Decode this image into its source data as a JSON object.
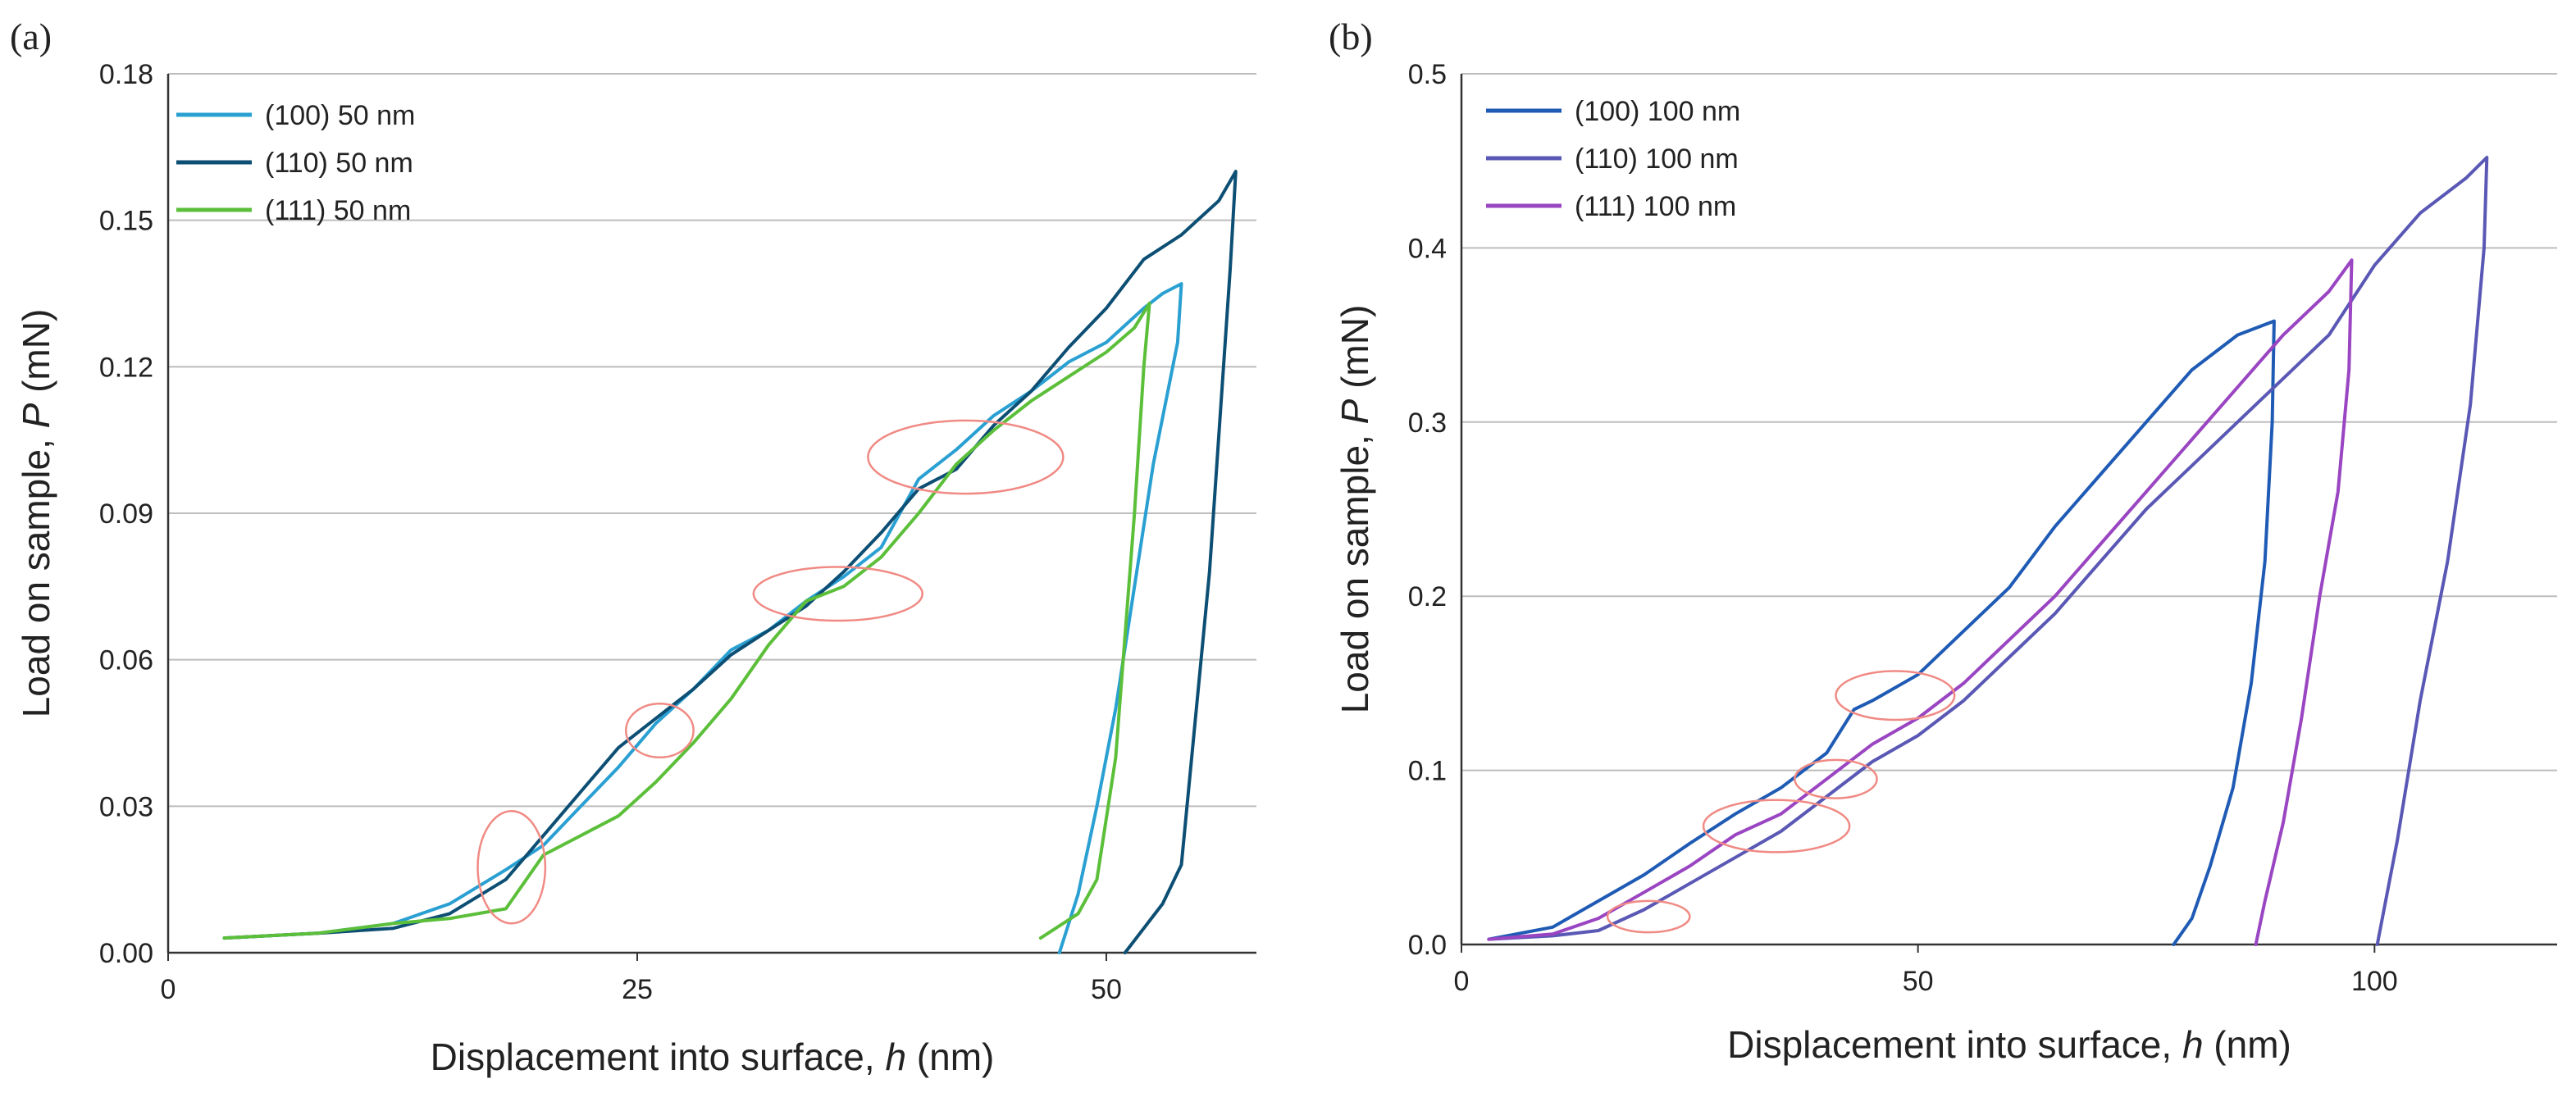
{
  "chart_data": [
    {
      "type": "line",
      "panel_label": "(a)",
      "xlabel_main": "Displacement into surface, ",
      "xlabel_italic": "h",
      "xlabel_unit": " (nm)",
      "ylabel_main": "Load on sample, ",
      "ylabel_italic": "P",
      "ylabel_unit": " (mN)",
      "xlim": [
        0,
        58
      ],
      "ylim": [
        0,
        0.18
      ],
      "xticks": [
        0,
        25,
        50
      ],
      "xtick_labels": [
        "0",
        "25",
        "50"
      ],
      "yticks": [
        0,
        0.03,
        0.06,
        0.09,
        0.12,
        0.15,
        0.18
      ],
      "ytick_labels": [
        "0.00",
        "0.03",
        "0.06",
        "0.09",
        "0.12",
        "0.15",
        "0.18"
      ],
      "grid": "horizontal",
      "legend_position": "top-left",
      "series": [
        {
          "name": "(100) 50 nm",
          "color": "#2aa0d2",
          "x": [
            3,
            8,
            12,
            15,
            18,
            20,
            22,
            24,
            26,
            28,
            30,
            32,
            34,
            36,
            38,
            40,
            42,
            44,
            46,
            48,
            50,
            52,
            53,
            54,
            53.8,
            52.5,
            51.5,
            50.5,
            49.5,
            48.5,
            47.5
          ],
          "y": [
            0.003,
            0.004,
            0.006,
            0.01,
            0.017,
            0.022,
            0.03,
            0.038,
            0.047,
            0.054,
            0.062,
            0.066,
            0.072,
            0.077,
            0.083,
            0.097,
            0.103,
            0.11,
            0.115,
            0.121,
            0.125,
            0.132,
            0.135,
            0.137,
            0.125,
            0.1,
            0.075,
            0.05,
            0.03,
            0.012,
            0.0
          ]
        },
        {
          "name": "(110) 50 nm",
          "color": "#0d4f74",
          "x": [
            3,
            8,
            12,
            15,
            18,
            20,
            22,
            24,
            26,
            28,
            30,
            32,
            34,
            36,
            38,
            40,
            42,
            44,
            46,
            48,
            50,
            52,
            54,
            56,
            56.9,
            56.6,
            55.5,
            54,
            53,
            52,
            51
          ],
          "y": [
            0.003,
            0.004,
            0.005,
            0.008,
            0.015,
            0.024,
            0.033,
            0.042,
            0.048,
            0.054,
            0.061,
            0.066,
            0.071,
            0.078,
            0.086,
            0.095,
            0.099,
            0.108,
            0.115,
            0.124,
            0.132,
            0.142,
            0.147,
            0.154,
            0.16,
            0.14,
            0.078,
            0.018,
            0.01,
            0.005,
            0.0
          ]
        },
        {
          "name": "(111) 50 nm",
          "color": "#5cbf3a",
          "x": [
            3,
            8,
            12,
            15,
            18,
            20,
            22,
            24,
            26,
            28,
            30,
            32,
            34,
            36,
            38,
            40,
            42,
            44,
            46,
            48,
            50,
            51.5,
            52.3,
            52,
            51.5,
            51,
            50.5,
            49.5,
            48.5,
            46.5
          ],
          "y": [
            0.003,
            0.004,
            0.006,
            0.007,
            0.009,
            0.02,
            0.024,
            0.028,
            0.035,
            0.043,
            0.052,
            0.063,
            0.072,
            0.075,
            0.081,
            0.09,
            0.1,
            0.107,
            0.113,
            0.118,
            0.123,
            0.128,
            0.133,
            0.12,
            0.09,
            0.065,
            0.04,
            0.015,
            0.008,
            0.003
          ]
        }
      ],
      "annotations": [
        {
          "cx": 18.3,
          "cy": 0.0175,
          "rx": 1.8,
          "ry": 0.0115
        },
        {
          "cx": 26.2,
          "cy": 0.0455,
          "rx": 1.8,
          "ry": 0.0055
        },
        {
          "cx": 35.7,
          "cy": 0.0735,
          "rx": 4.5,
          "ry": 0.0055
        },
        {
          "cx": 42.5,
          "cy": 0.1015,
          "rx": 5.2,
          "ry": 0.0075
        }
      ]
    },
    {
      "type": "line",
      "panel_label": "(b)",
      "xlabel_main": "Displacement into surface, ",
      "xlabel_italic": "h",
      "xlabel_unit": " (nm)",
      "ylabel_main": "Load on sample, ",
      "ylabel_italic": "P",
      "ylabel_unit": " (mN)",
      "xlim": [
        0,
        120
      ],
      "ylim": [
        0,
        0.5
      ],
      "xticks": [
        0,
        50,
        100
      ],
      "xtick_labels": [
        "0",
        "50",
        "100"
      ],
      "yticks": [
        0,
        0.1,
        0.2,
        0.3,
        0.4,
        0.5
      ],
      "ytick_labels": [
        "0.0",
        "0.1",
        "0.2",
        "0.3",
        "0.4",
        "0.5"
      ],
      "grid": "horizontal",
      "legend_position": "top-left",
      "series": [
        {
          "name": "(100) 100 nm",
          "color": "#1f5bb5",
          "x": [
            3,
            10,
            15,
            20,
            25,
            30,
            35,
            40,
            43,
            45,
            50,
            55,
            60,
            65,
            70,
            75,
            80,
            85,
            89,
            88.8,
            88,
            86.5,
            84.5,
            82,
            80,
            78
          ],
          "y": [
            0.003,
            0.01,
            0.025,
            0.04,
            0.058,
            0.075,
            0.09,
            0.11,
            0.135,
            0.14,
            0.155,
            0.18,
            0.205,
            0.24,
            0.27,
            0.3,
            0.33,
            0.35,
            0.358,
            0.3,
            0.22,
            0.15,
            0.09,
            0.045,
            0.015,
            0.0
          ]
        },
        {
          "name": "(110) 100 nm",
          "color": "#5a58b5",
          "x": [
            3,
            10,
            15,
            20,
            25,
            30,
            35,
            40,
            45,
            50,
            55,
            60,
            65,
            70,
            75,
            80,
            85,
            90,
            95,
            100,
            105,
            110,
            112.3,
            112,
            110.5,
            108,
            105,
            102.5,
            100.3
          ],
          "y": [
            0.003,
            0.005,
            0.008,
            0.02,
            0.035,
            0.05,
            0.065,
            0.085,
            0.105,
            0.12,
            0.14,
            0.165,
            0.19,
            0.22,
            0.25,
            0.275,
            0.3,
            0.325,
            0.35,
            0.39,
            0.42,
            0.44,
            0.452,
            0.4,
            0.31,
            0.22,
            0.14,
            0.06,
            0.0
          ]
        },
        {
          "name": "(111) 100 nm",
          "color": "#9a45c2",
          "x": [
            3,
            10,
            15,
            20,
            25,
            30,
            35,
            40,
            45,
            50,
            55,
            60,
            65,
            70,
            75,
            80,
            85,
            90,
            95,
            97.5,
            97.2,
            96,
            94,
            92,
            90,
            88,
            87
          ],
          "y": [
            0.003,
            0.006,
            0.015,
            0.03,
            0.045,
            0.063,
            0.075,
            0.095,
            0.115,
            0.13,
            0.15,
            0.175,
            0.2,
            0.23,
            0.26,
            0.29,
            0.32,
            0.35,
            0.375,
            0.393,
            0.33,
            0.26,
            0.2,
            0.13,
            0.07,
            0.025,
            0.0
          ]
        }
      ],
      "annotations": [
        {
          "cx": 20.5,
          "cy": 0.016,
          "rx": 4.5,
          "ry": 0.009
        },
        {
          "cx": 34.5,
          "cy": 0.068,
          "rx": 8.0,
          "ry": 0.015
        },
        {
          "cx": 41.0,
          "cy": 0.095,
          "rx": 4.5,
          "ry": 0.011
        },
        {
          "cx": 47.5,
          "cy": 0.143,
          "rx": 6.5,
          "ry": 0.014
        }
      ]
    }
  ]
}
